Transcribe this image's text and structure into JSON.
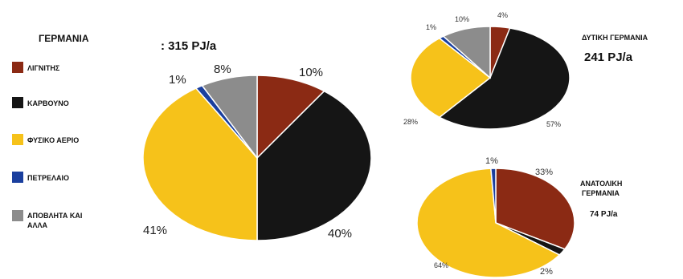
{
  "chart_data": [
    {
      "type": "pie",
      "title": "ΓΕΡΜΑΝΙΑ",
      "subtitle": ": 315 PJ/a",
      "categories": [
        "ΛΙΓΝΙΤΗΣ",
        "ΚΑΡΒΟΥΝΟ",
        "ΦΥΣΙΚΟ ΑΕΡΙΟ",
        "ΠΕΤΡΕΛΑΙΟ",
        "ΑΠΟΒΛΗΤΑ ΚΑΙ ΑΛΛΑ"
      ],
      "values": [
        10,
        40,
        41,
        1,
        8
      ],
      "labels": [
        "10%",
        "40%",
        "41%",
        "1%",
        "8%"
      ],
      "legend": "left"
    },
    {
      "type": "pie",
      "title": "ΔΥΤΙΚΗ ΓΕΡΜΑΝΙΑ",
      "subtitle": "241 PJ/a",
      "categories": [
        "ΛΙΓΝΙΤΗΣ",
        "ΚΑΡΒΟΥΝΟ",
        "ΦΥΣΙΚΟ ΑΕΡΙΟ",
        "ΠΕΤΡΕΛΑΙΟ",
        "ΑΠΟΒΛΗΤΑ ΚΑΙ ΑΛΛΑ"
      ],
      "values": [
        4,
        57,
        28,
        1,
        10
      ],
      "labels": [
        "4%",
        "57%",
        "28%",
        "1%",
        "10%"
      ]
    },
    {
      "type": "pie",
      "title": "ΑΝΑΤΟΛΙΚΗ ΓΕΡΜΑΝΙΑ",
      "subtitle": "74 PJ/a",
      "categories": [
        "ΛΙΓΝΙΤΗΣ",
        "ΚΑΡΒΟΥΝΟ",
        "ΦΥΣΙΚΟ ΑΕΡΙΟ",
        "ΠΕΤΡΕΛΑΙΟ",
        "ΑΠΟΒΛΗΤΑ ΚΑΙ ΑΛΛΑ"
      ],
      "values": [
        33,
        2,
        64,
        1,
        0
      ],
      "labels": [
        "33%",
        "2%",
        "64%",
        "1%",
        ""
      ]
    }
  ],
  "colors": {
    "lignite": "#8b2a14",
    "coal": "#151515",
    "gas": "#f6c21a",
    "oil": "#1a3f9e",
    "waste": "#8c8c8c"
  }
}
